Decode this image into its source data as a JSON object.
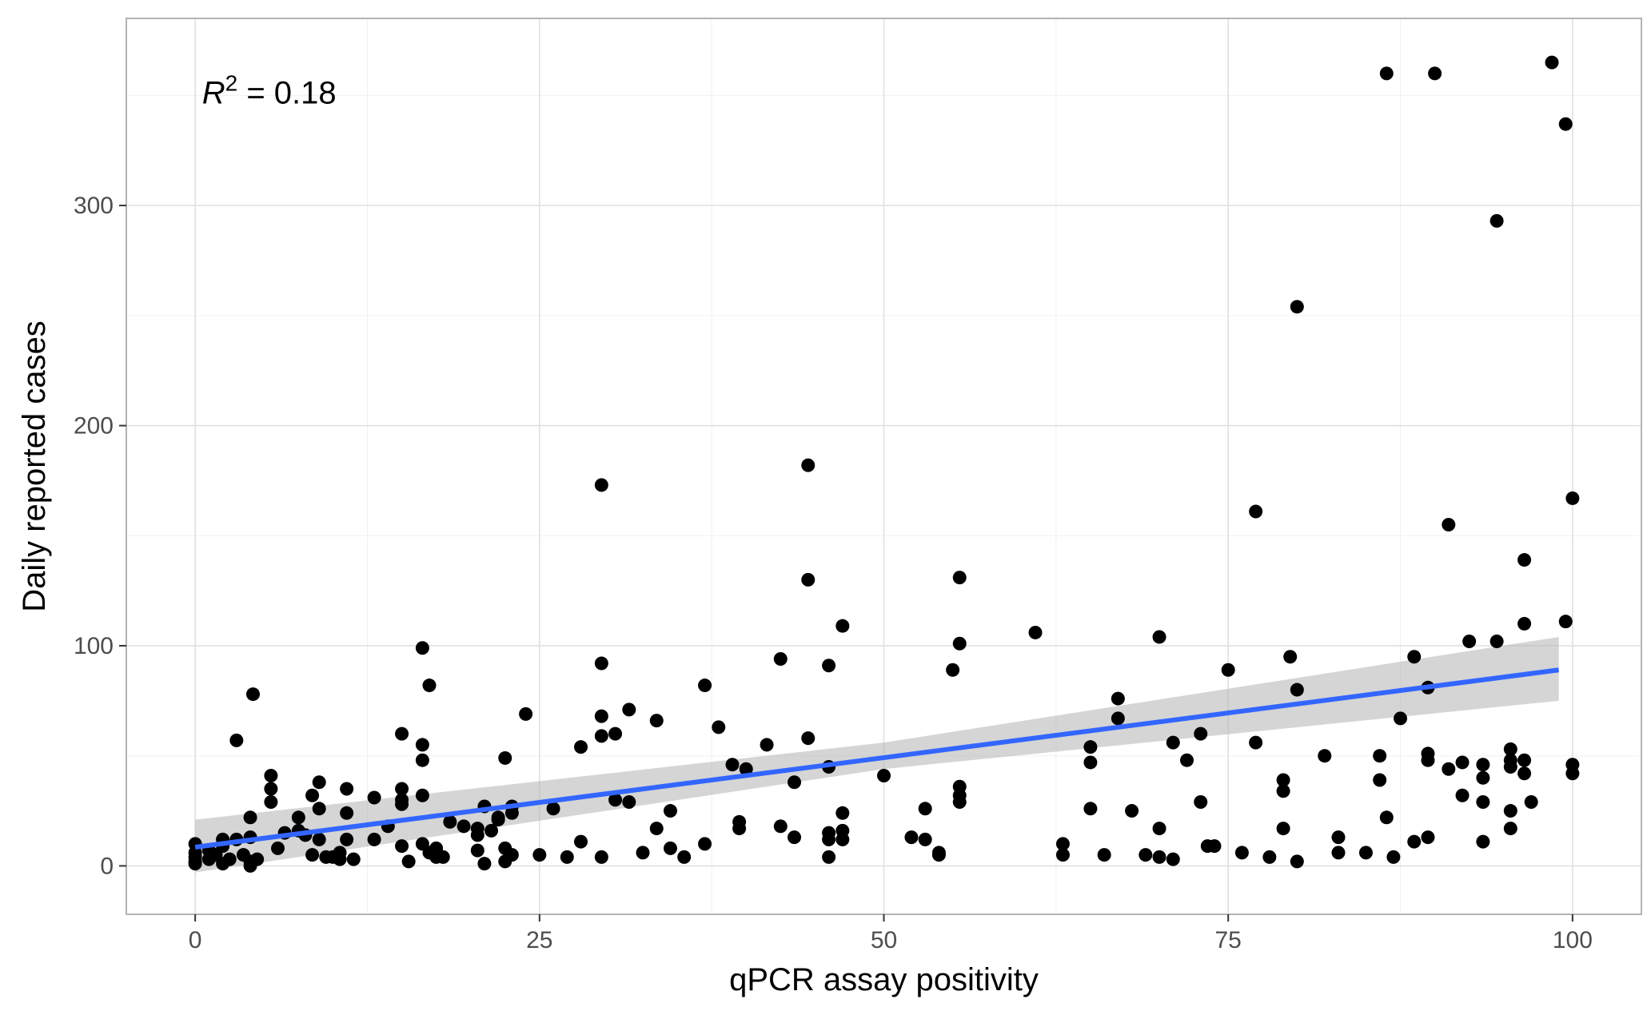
{
  "chart_data": {
    "type": "scatter",
    "title": "",
    "xlabel": "qPCR assay positivity",
    "ylabel": "Daily reported cases",
    "xlim": [
      -5,
      105
    ],
    "ylim": [
      -22,
      385
    ],
    "x_ticks": [
      0,
      25,
      50,
      75,
      100
    ],
    "y_ticks": [
      0,
      100,
      200,
      300
    ],
    "grid": true,
    "annotation": {
      "r_symbol": "R",
      "exponent": "2",
      "rest": " = 0.18",
      "x": 0.5,
      "y": 350
    },
    "trend": {
      "x0": 0,
      "y0": 8.5,
      "x1": 99,
      "y1": 89,
      "ci_low": [
        [
          0,
          -3
        ],
        [
          50,
          44
        ],
        [
          99,
          75
        ]
      ],
      "ci_high": [
        [
          0,
          21
        ],
        [
          50,
          56
        ],
        [
          99,
          104
        ]
      ],
      "line_color": "#3366ff",
      "band_color": "#b3b3b3"
    },
    "point_color": "#000000",
    "points": [
      [
        0,
        10
      ],
      [
        0,
        6
      ],
      [
        0,
        4
      ],
      [
        0,
        2
      ],
      [
        0,
        1
      ],
      [
        1,
        7
      ],
      [
        1,
        3
      ],
      [
        1.5,
        5
      ],
      [
        2,
        9
      ],
      [
        2,
        12
      ],
      [
        2,
        1
      ],
      [
        2.5,
        3
      ],
      [
        3,
        12
      ],
      [
        3,
        57
      ],
      [
        3.5,
        5
      ],
      [
        4,
        13
      ],
      [
        4,
        22
      ],
      [
        4,
        2
      ],
      [
        4,
        0
      ],
      [
        4.2,
        78
      ],
      [
        4.5,
        3
      ],
      [
        5.5,
        41
      ],
      [
        5.5,
        35
      ],
      [
        5.5,
        29
      ],
      [
        6,
        8
      ],
      [
        6.5,
        15
      ],
      [
        7.5,
        22
      ],
      [
        7.5,
        16
      ],
      [
        8,
        14
      ],
      [
        8.5,
        32
      ],
      [
        8.5,
        5
      ],
      [
        9,
        38
      ],
      [
        9,
        26
      ],
      [
        9,
        12
      ],
      [
        9.5,
        4
      ],
      [
        10,
        4
      ],
      [
        10.5,
        6
      ],
      [
        10.5,
        3
      ],
      [
        11,
        35
      ],
      [
        11,
        24
      ],
      [
        11,
        12
      ],
      [
        11.5,
        3
      ],
      [
        13,
        31
      ],
      [
        13,
        12
      ],
      [
        14,
        18
      ],
      [
        15,
        60
      ],
      [
        15,
        35
      ],
      [
        15,
        30
      ],
      [
        15,
        28
      ],
      [
        15,
        9
      ],
      [
        15.5,
        2
      ],
      [
        16.5,
        99
      ],
      [
        16.5,
        55
      ],
      [
        16.5,
        48
      ],
      [
        16.5,
        32
      ],
      [
        16.5,
        10
      ],
      [
        17,
        82
      ],
      [
        17,
        6
      ],
      [
        17.5,
        8
      ],
      [
        17.5,
        4
      ],
      [
        18,
        4
      ],
      [
        18.5,
        20
      ],
      [
        19.5,
        18
      ],
      [
        20.5,
        17
      ],
      [
        20.5,
        14
      ],
      [
        20.5,
        7
      ],
      [
        21,
        27
      ],
      [
        21,
        1
      ],
      [
        21.5,
        16
      ],
      [
        22,
        22
      ],
      [
        22,
        21
      ],
      [
        22.5,
        49
      ],
      [
        22.5,
        8
      ],
      [
        22.5,
        2
      ],
      [
        23,
        27
      ],
      [
        23,
        24
      ],
      [
        23,
        5
      ],
      [
        24,
        69
      ],
      [
        25,
        5
      ],
      [
        26,
        26
      ],
      [
        27,
        4
      ],
      [
        28,
        54
      ],
      [
        28,
        11
      ],
      [
        29.5,
        173
      ],
      [
        29.5,
        92
      ],
      [
        29.5,
        68
      ],
      [
        29.5,
        59
      ],
      [
        29.5,
        4
      ],
      [
        30.5,
        60
      ],
      [
        30.5,
        30
      ],
      [
        31.5,
        71
      ],
      [
        31.5,
        29
      ],
      [
        32.5,
        6
      ],
      [
        33.5,
        66
      ],
      [
        33.5,
        17
      ],
      [
        34.5,
        25
      ],
      [
        34.5,
        8
      ],
      [
        35.5,
        4
      ],
      [
        37,
        82
      ],
      [
        37,
        10
      ],
      [
        38,
        63
      ],
      [
        39,
        46
      ],
      [
        39.5,
        20
      ],
      [
        39.5,
        17
      ],
      [
        40,
        44
      ],
      [
        41.5,
        55
      ],
      [
        42.5,
        94
      ],
      [
        42.5,
        18
      ],
      [
        43.5,
        38
      ],
      [
        43.5,
        13
      ],
      [
        44.5,
        182
      ],
      [
        44.5,
        130
      ],
      [
        44.5,
        58
      ],
      [
        46,
        91
      ],
      [
        46,
        45
      ],
      [
        46,
        15
      ],
      [
        46,
        12
      ],
      [
        46,
        4
      ],
      [
        47,
        109
      ],
      [
        47,
        24
      ],
      [
        47,
        16
      ],
      [
        47,
        12
      ],
      [
        50,
        41
      ],
      [
        52,
        13
      ],
      [
        53,
        26
      ],
      [
        53,
        12
      ],
      [
        54,
        6
      ],
      [
        54,
        5
      ],
      [
        55,
        89
      ],
      [
        55.5,
        131
      ],
      [
        55.5,
        101
      ],
      [
        55.5,
        36
      ],
      [
        55.5,
        32
      ],
      [
        55.5,
        29
      ],
      [
        61,
        106
      ],
      [
        63,
        10
      ],
      [
        63,
        5
      ],
      [
        65,
        54
      ],
      [
        65,
        47
      ],
      [
        65,
        26
      ],
      [
        66,
        5
      ],
      [
        67,
        76
      ],
      [
        67,
        67
      ],
      [
        68,
        25
      ],
      [
        69,
        5
      ],
      [
        70,
        104
      ],
      [
        70,
        17
      ],
      [
        70,
        4
      ],
      [
        71,
        56
      ],
      [
        71,
        3
      ],
      [
        72,
        48
      ],
      [
        73,
        60
      ],
      [
        73,
        29
      ],
      [
        73.5,
        9
      ],
      [
        74,
        9
      ],
      [
        75,
        89
      ],
      [
        76,
        6
      ],
      [
        77,
        161
      ],
      [
        77,
        56
      ],
      [
        78,
        4
      ],
      [
        79,
        39
      ],
      [
        79,
        34
      ],
      [
        79,
        17
      ],
      [
        79.5,
        95
      ],
      [
        80,
        254
      ],
      [
        80,
        80
      ],
      [
        80,
        2
      ],
      [
        82,
        50
      ],
      [
        83,
        13
      ],
      [
        83,
        6
      ],
      [
        85,
        6
      ],
      [
        86,
        50
      ],
      [
        86,
        39
      ],
      [
        86.5,
        360
      ],
      [
        86.5,
        22
      ],
      [
        87,
        4
      ],
      [
        87.5,
        67
      ],
      [
        88.5,
        95
      ],
      [
        88.5,
        11
      ],
      [
        89.5,
        81
      ],
      [
        89.5,
        51
      ],
      [
        89.5,
        48
      ],
      [
        89.5,
        13
      ],
      [
        90,
        360
      ],
      [
        91,
        155
      ],
      [
        91,
        44
      ],
      [
        92,
        47
      ],
      [
        92,
        32
      ],
      [
        92.5,
        102
      ],
      [
        93.5,
        46
      ],
      [
        93.5,
        40
      ],
      [
        93.5,
        29
      ],
      [
        93.5,
        11
      ],
      [
        94.5,
        293
      ],
      [
        94.5,
        102
      ],
      [
        95.5,
        53
      ],
      [
        95.5,
        48
      ],
      [
        95.5,
        45
      ],
      [
        95.5,
        25
      ],
      [
        95.5,
        17
      ],
      [
        96.5,
        139
      ],
      [
        96.5,
        110
      ],
      [
        96.5,
        48
      ],
      [
        96.5,
        42
      ],
      [
        97,
        29
      ],
      [
        98.5,
        365
      ],
      [
        99.5,
        337
      ],
      [
        99.5,
        111
      ],
      [
        100,
        167
      ],
      [
        100,
        46
      ],
      [
        100,
        42
      ]
    ]
  }
}
